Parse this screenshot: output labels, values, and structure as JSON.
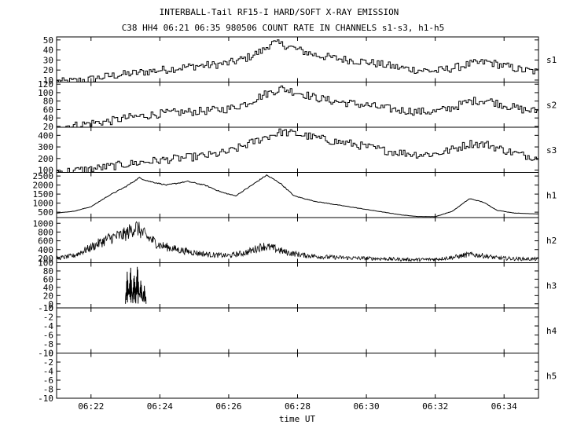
{
  "chart_data": {
    "type": "line",
    "title": "INTERBALL-Tail RF15-I HARD/SOFT X-RAY EMISSION",
    "subtitle": "C38 HH4 06:21 06:35 980506  COUNT RATE IN CHANNELS s1-s3, h1-h5",
    "xlabel": "time UT",
    "x_ticks": [
      "06:22",
      "06:24",
      "06:26",
      "06:28",
      "06:30",
      "06:32",
      "06:34"
    ],
    "x_range_min": [
      21.0,
      35.0
    ],
    "x_tick_values_min": [
      22,
      24,
      26,
      28,
      30,
      32,
      34
    ],
    "panels": [
      {
        "name": "s1",
        "style": "step",
        "ylim": [
          8,
          53
        ],
        "yticks": [
          10,
          20,
          30,
          40,
          50
        ],
        "points": [
          [
            21.0,
            8
          ],
          [
            21.5,
            9
          ],
          [
            22.0,
            11
          ],
          [
            22.5,
            14
          ],
          [
            23.0,
            16
          ],
          [
            23.5,
            18
          ],
          [
            24.0,
            20
          ],
          [
            24.5,
            22
          ],
          [
            25.0,
            24
          ],
          [
            25.5,
            25
          ],
          [
            26.0,
            27
          ],
          [
            26.5,
            32
          ],
          [
            27.0,
            40
          ],
          [
            27.2,
            47
          ],
          [
            27.6,
            45
          ],
          [
            28.0,
            40
          ],
          [
            28.5,
            35
          ],
          [
            29.0,
            32
          ],
          [
            29.5,
            30
          ],
          [
            30.0,
            28
          ],
          [
            30.5,
            25
          ],
          [
            31.0,
            22
          ],
          [
            31.5,
            20
          ],
          [
            32.0,
            19
          ],
          [
            32.5,
            22
          ],
          [
            33.0,
            26
          ],
          [
            33.5,
            28
          ],
          [
            34.0,
            24
          ],
          [
            34.5,
            20
          ],
          [
            35.0,
            18
          ]
        ]
      },
      {
        "name": "s2",
        "style": "step",
        "ylim": [
          18,
          125
        ],
        "yticks": [
          20,
          40,
          60,
          80,
          100,
          120
        ],
        "points": [
          [
            21.0,
            20
          ],
          [
            21.5,
            22
          ],
          [
            22.0,
            28
          ],
          [
            22.5,
            32
          ],
          [
            23.0,
            40
          ],
          [
            23.5,
            45
          ],
          [
            24.0,
            50
          ],
          [
            24.5,
            53
          ],
          [
            25.0,
            55
          ],
          [
            25.5,
            58
          ],
          [
            26.0,
            62
          ],
          [
            26.5,
            75
          ],
          [
            27.0,
            95
          ],
          [
            27.5,
            110
          ],
          [
            28.0,
            100
          ],
          [
            28.5,
            88
          ],
          [
            29.0,
            80
          ],
          [
            29.5,
            75
          ],
          [
            30.0,
            70
          ],
          [
            30.5,
            63
          ],
          [
            31.0,
            58
          ],
          [
            31.5,
            55
          ],
          [
            32.0,
            55
          ],
          [
            32.5,
            65
          ],
          [
            33.0,
            80
          ],
          [
            33.5,
            82
          ],
          [
            34.0,
            70
          ],
          [
            34.5,
            60
          ],
          [
            35.0,
            55
          ]
        ]
      },
      {
        "name": "s3",
        "style": "step",
        "ylim": [
          80,
          470
        ],
        "yticks": [
          100,
          200,
          300,
          400
        ],
        "points": [
          [
            21.0,
            85
          ],
          [
            21.5,
            95
          ],
          [
            22.0,
            110
          ],
          [
            22.5,
            130
          ],
          [
            23.0,
            150
          ],
          [
            23.5,
            170
          ],
          [
            24.0,
            185
          ],
          [
            24.5,
            200
          ],
          [
            25.0,
            215
          ],
          [
            25.5,
            230
          ],
          [
            26.0,
            260
          ],
          [
            26.5,
            320
          ],
          [
            27.0,
            380
          ],
          [
            27.5,
            430
          ],
          [
            28.0,
            410
          ],
          [
            28.5,
            380
          ],
          [
            29.0,
            350
          ],
          [
            29.5,
            330
          ],
          [
            30.0,
            300
          ],
          [
            30.5,
            270
          ],
          [
            31.0,
            250
          ],
          [
            31.5,
            235
          ],
          [
            32.0,
            240
          ],
          [
            32.5,
            280
          ],
          [
            33.0,
            330
          ],
          [
            33.5,
            320
          ],
          [
            34.0,
            270
          ],
          [
            34.5,
            230
          ],
          [
            35.0,
            210
          ]
        ]
      },
      {
        "name": "h1",
        "style": "line",
        "ylim": [
          200,
          2700
        ],
        "yticks": [
          500,
          1000,
          1500,
          2000,
          2500
        ],
        "points": [
          [
            21.0,
            450
          ],
          [
            21.5,
            550
          ],
          [
            22.0,
            800
          ],
          [
            22.5,
            1400
          ],
          [
            23.0,
            1900
          ],
          [
            23.4,
            2400
          ],
          [
            23.7,
            2200
          ],
          [
            24.2,
            2000
          ],
          [
            24.8,
            2200
          ],
          [
            25.3,
            2000
          ],
          [
            25.8,
            1600
          ],
          [
            26.2,
            1400
          ],
          [
            26.6,
            1900
          ],
          [
            27.1,
            2550
          ],
          [
            27.5,
            2100
          ],
          [
            27.9,
            1400
          ],
          [
            28.5,
            1100
          ],
          [
            29.0,
            950
          ],
          [
            29.5,
            800
          ],
          [
            30.0,
            650
          ],
          [
            30.5,
            500
          ],
          [
            31.0,
            350
          ],
          [
            31.5,
            260
          ],
          [
            32.0,
            250
          ],
          [
            32.5,
            550
          ],
          [
            33.0,
            1250
          ],
          [
            33.4,
            1050
          ],
          [
            33.8,
            600
          ],
          [
            34.3,
            450
          ],
          [
            35.0,
            400
          ]
        ]
      },
      {
        "name": "h2",
        "style": "noisy",
        "ylim": [
          100,
          1130
        ],
        "yticks": [
          200,
          400,
          600,
          800,
          1000
        ],
        "points": [
          [
            21.0,
            200
          ],
          [
            21.5,
            260
          ],
          [
            22.0,
            450
          ],
          [
            22.5,
            650
          ],
          [
            23.0,
            750
          ],
          [
            23.3,
            920
          ],
          [
            23.6,
            700
          ],
          [
            24.0,
            500
          ],
          [
            24.5,
            400
          ],
          [
            25.0,
            330
          ],
          [
            25.5,
            280
          ],
          [
            26.0,
            260
          ],
          [
            26.5,
            330
          ],
          [
            27.0,
            480
          ],
          [
            27.3,
            430
          ],
          [
            27.7,
            330
          ],
          [
            28.2,
            270
          ],
          [
            28.8,
            230
          ],
          [
            29.5,
            210
          ],
          [
            30.0,
            200
          ],
          [
            30.5,
            190
          ],
          [
            31.0,
            175
          ],
          [
            31.5,
            170
          ],
          [
            32.0,
            180
          ],
          [
            32.5,
            220
          ],
          [
            33.0,
            290
          ],
          [
            33.4,
            260
          ],
          [
            33.8,
            210
          ],
          [
            34.3,
            190
          ],
          [
            35.0,
            180
          ]
        ]
      },
      {
        "name": "h3",
        "style": "burst",
        "ylim": [
          -10,
          100
        ],
        "yticks": [
          -10,
          0,
          20,
          40,
          60,
          80,
          100
        ],
        "points": [
          [
            23.0,
            0
          ],
          [
            23.05,
            80
          ],
          [
            23.1,
            20
          ],
          [
            23.15,
            95
          ],
          [
            23.2,
            10
          ],
          [
            23.25,
            75
          ],
          [
            23.3,
            30
          ],
          [
            23.35,
            100
          ],
          [
            23.4,
            15
          ],
          [
            23.45,
            60
          ],
          [
            23.5,
            5
          ],
          [
            23.55,
            45
          ],
          [
            23.6,
            0
          ]
        ]
      },
      {
        "name": "h4",
        "style": "line",
        "ylim": [
          -10,
          0
        ],
        "yticks": [
          -10,
          -8,
          -6,
          -4,
          -2,
          0
        ],
        "points": []
      },
      {
        "name": "h5",
        "style": "line",
        "ylim": [
          -10,
          0
        ],
        "yticks": [
          -10,
          -8,
          -6,
          -4,
          -2,
          0
        ],
        "points": []
      }
    ]
  }
}
